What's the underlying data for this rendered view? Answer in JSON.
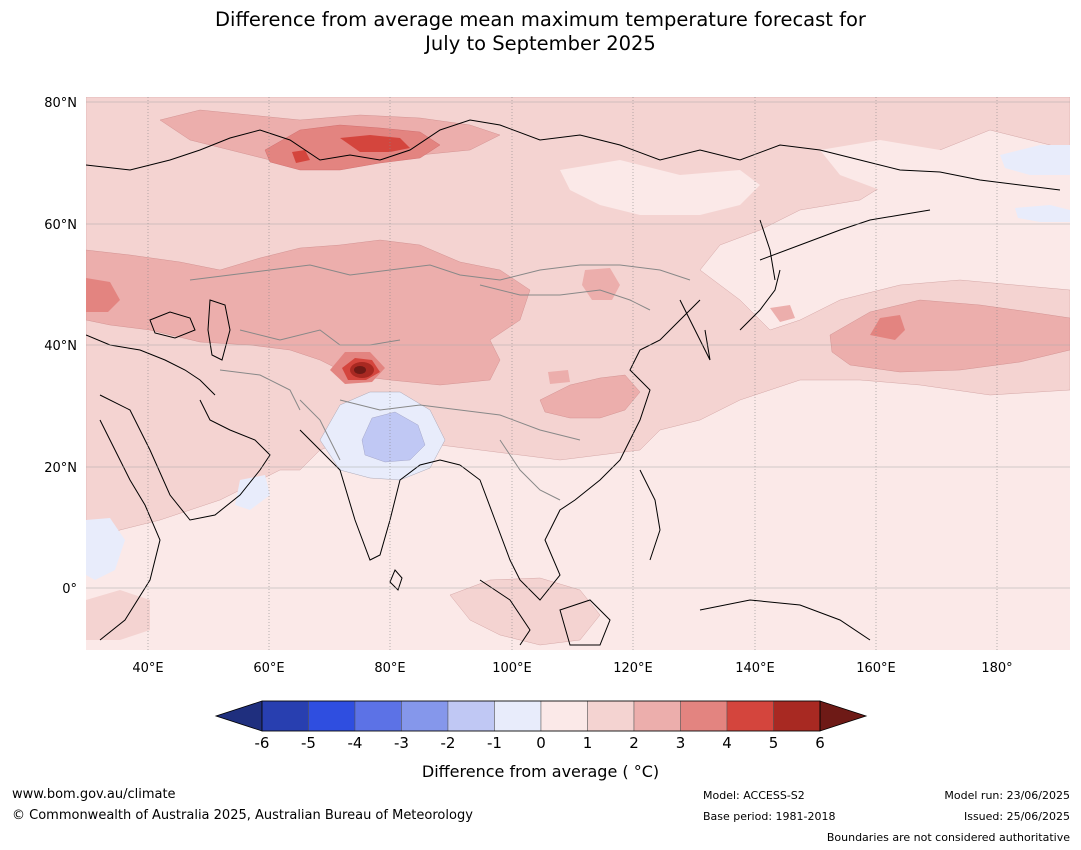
{
  "title": {
    "line1": "Difference from average mean maximum temperature forecast for",
    "line2": "July to September 2025"
  },
  "map": {
    "lat_labels": [
      "80°N",
      "60°N",
      "40°N",
      "20°N",
      "0°"
    ],
    "lon_labels": [
      "40°E",
      "60°E",
      "80°E",
      "100°E",
      "120°E",
      "140°E",
      "160°E",
      "180°"
    ],
    "extent": {
      "lon": [
        30,
        192
      ],
      "lat": [
        -10,
        81
      ]
    },
    "colors": {
      "neutral_pos": "#fbe9e8",
      "pos_1_2": "#f4d3d1",
      "pos_2_3": "#ecaeac",
      "pos_3_4": "#e38480",
      "pos_4_5": "#d4453d",
      "pos_5_6": "#a82922",
      "pos_gt6": "#6e1a16",
      "neg_0_1": "#e8ecfb",
      "neg_1_2": "#c0c8f4"
    }
  },
  "colorbar": {
    "ticks": [
      "-6",
      "-5",
      "-4",
      "-3",
      "-2",
      "-1",
      "0",
      "1",
      "2",
      "3",
      "4",
      "5",
      "6"
    ],
    "colors": [
      "#1f2f7e",
      "#283fb0",
      "#2f4ee0",
      "#5c72e6",
      "#8597eb",
      "#c0c8f4",
      "#e8ecfb",
      "#fbe9e8",
      "#f4d3d1",
      "#ecaeac",
      "#e38480",
      "#d4453d",
      "#a82922",
      "#6e1a16"
    ],
    "label": "Difference from average ( °C)"
  },
  "footer": {
    "website": "www.bom.gov.au/climate",
    "copyright": "© Commonwealth of Australia 2025, Australian Bureau of Meteorology",
    "model": "Model: ACCESS-S2",
    "base_period": "Base period: 1981-2018",
    "model_run": "Model run: 23/06/2025",
    "issued": "Issued: 25/06/2025",
    "disclaimer": "Boundaries are not considered authoritative"
  }
}
